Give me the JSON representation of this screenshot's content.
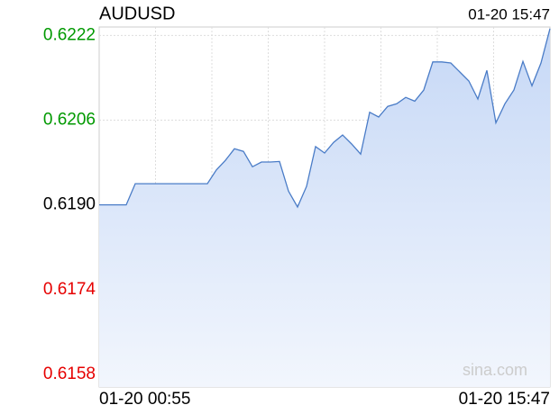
{
  "chart_data": {
    "type": "line",
    "title": "AUDUSD",
    "timestamp": "01-20 15:47",
    "watermark": "sina.com",
    "categories": [
      "01-20 00:55",
      null,
      null,
      null,
      null,
      null,
      null,
      null,
      null,
      null,
      null,
      null,
      null,
      null,
      null,
      null,
      null,
      null,
      null,
      null,
      null,
      null,
      null,
      null,
      null,
      null,
      null,
      null,
      null,
      null,
      null,
      null,
      null,
      null,
      null,
      null,
      null,
      null,
      null,
      null,
      null,
      null,
      null,
      null,
      null,
      null,
      null,
      null,
      null,
      null,
      "01-20 15:47"
    ],
    "values": [
      0.619,
      0.619,
      0.619,
      0.619,
      0.6194,
      0.6194,
      0.6194,
      0.6194,
      0.6194,
      0.6194,
      0.6194,
      0.6194,
      0.6194,
      0.61966,
      0.61984,
      0.62006,
      0.62001,
      0.61972,
      0.61981,
      0.61981,
      0.61982,
      0.61926,
      0.61896,
      0.61935,
      0.6201,
      0.61998,
      0.62018,
      0.62032,
      0.62015,
      0.61996,
      0.62075,
      0.62066,
      0.62086,
      0.62091,
      0.62103,
      0.62096,
      0.62117,
      0.6217,
      0.6217,
      0.62168,
      0.62151,
      0.62134,
      0.621,
      0.62154,
      0.62055,
      0.62091,
      0.62117,
      0.62171,
      0.62125,
      0.62168,
      0.62233
    ],
    "color": "#4a7cc7",
    "baseline": 0.619,
    "up_color": "#009900",
    "down_color": "#e60000",
    "flat_color": "#000000",
    "ylim": [
      0.61556,
      0.62236
    ],
    "yticks": [
      {
        "value": 0.6158,
        "label": "0.6158"
      },
      {
        "value": 0.6174,
        "label": "0.6174"
      },
      {
        "value": 0.619,
        "label": "0.6190"
      },
      {
        "value": 0.6206,
        "label": "0.6206"
      },
      {
        "value": 0.6222,
        "label": "0.6222"
      }
    ],
    "grid": true
  }
}
